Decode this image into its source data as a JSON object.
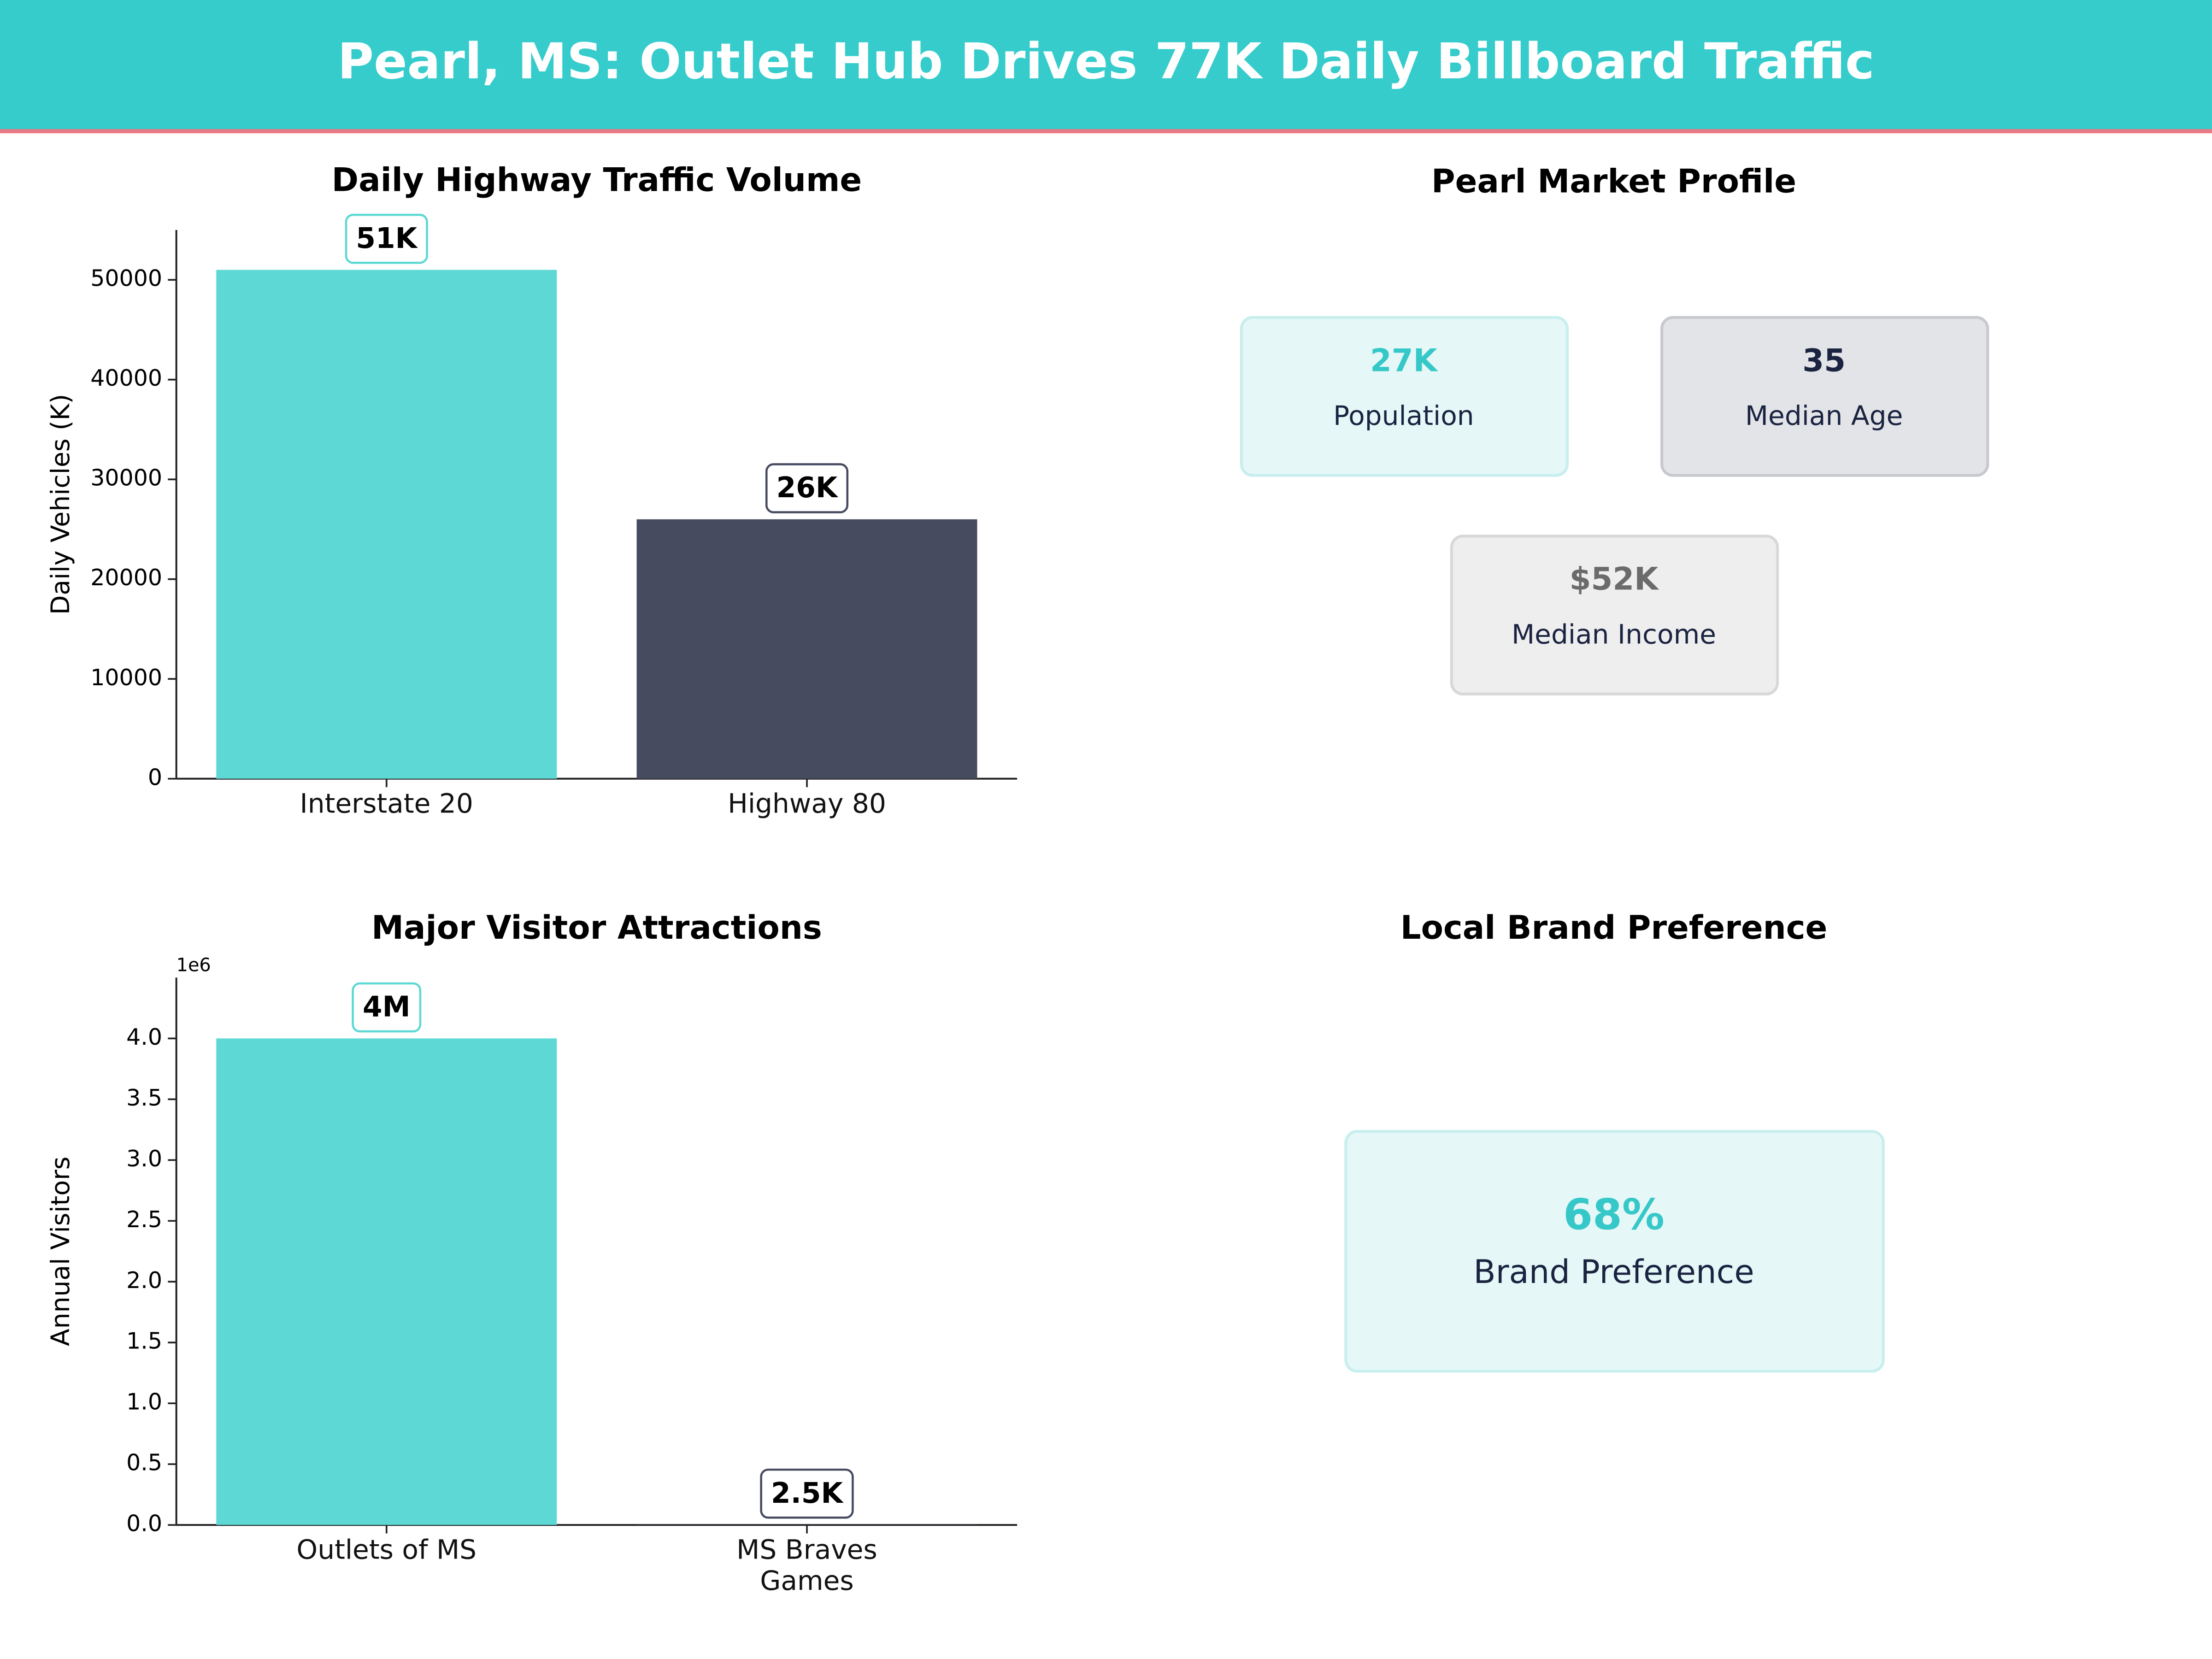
{
  "title": "Pearl, MS: Outlet Hub Drives 77K Daily Billboard Traffic",
  "chart_data": [
    {
      "type": "bar",
      "title": "Daily Highway Traffic Volume",
      "y_label": "Daily Vehicles (K)",
      "categories": [
        "Interstate 20",
        "Highway 80"
      ],
      "values": [
        51000,
        26000
      ],
      "value_labels": [
        "51K",
        "26K"
      ],
      "colors": [
        "#5dd8d4",
        "#474b60"
      ],
      "ylim": [
        0,
        55000
      ],
      "yticks": [
        0,
        10000,
        20000,
        30000,
        40000,
        50000
      ]
    },
    {
      "type": "bar",
      "title": "Major Visitor Attractions",
      "y_label": "Annual Visitors",
      "offset_label": "1e6",
      "categories": [
        "Outlets of MS",
        "MS Braves Games"
      ],
      "values": [
        4000000,
        2500
      ],
      "value_labels": [
        "4M",
        "2.5K"
      ],
      "colors": [
        "#5dd8d4",
        "#474b60"
      ],
      "ylim": [
        0,
        4500000
      ],
      "yticks": [
        {
          "value": 0,
          "label": "0.0"
        },
        {
          "value": 500000,
          "label": "0.5"
        },
        {
          "value": 1000000,
          "label": "1.0"
        },
        {
          "value": 1500000,
          "label": "1.5"
        },
        {
          "value": 2000000,
          "label": "2.0"
        },
        {
          "value": 2500000,
          "label": "2.5"
        },
        {
          "value": 3000000,
          "label": "3.0"
        },
        {
          "value": 3500000,
          "label": "3.5"
        },
        {
          "value": 4000000,
          "label": "4.0"
        }
      ]
    }
  ],
  "market_profile": {
    "title": "Pearl Market Profile",
    "cards": [
      {
        "value": "27K",
        "label": "Population"
      },
      {
        "value": "35",
        "label": "Median Age"
      },
      {
        "value": "$52K",
        "label": "Median Income"
      }
    ]
  },
  "brand_preference": {
    "title": "Local Brand Preference",
    "value": "68%",
    "label": "Brand Preference"
  }
}
